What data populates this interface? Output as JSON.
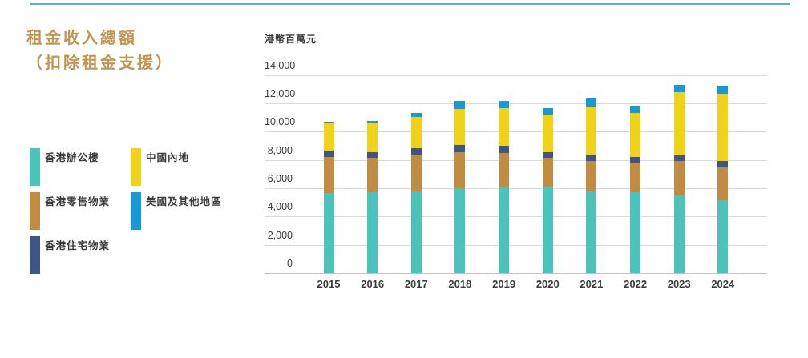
{
  "header": {
    "title_line1": "租金收入總額",
    "title_line2": "（扣除租金支援）",
    "title_color": "#C39450",
    "top_rule_color": "#64ACC1"
  },
  "chart_data": {
    "type": "bar",
    "stacked": true,
    "title": "租金收入總額（扣除租金支援）",
    "unit_label": "港幣百萬元",
    "xlabel": "",
    "ylabel": "港幣百萬元",
    "ylim": [
      0,
      14000
    ],
    "grid": true,
    "legend_position": "left",
    "categories": [
      "2015",
      "2016",
      "2017",
      "2018",
      "2019",
      "2020",
      "2021",
      "2022",
      "2023",
      "2024"
    ],
    "series": [
      {
        "name": "香港辦公樓",
        "color": "#4CC3BA",
        "values": [
          5675,
          5700,
          5750,
          5975,
          6125,
          6100,
          5800,
          5700,
          5500,
          5175
        ]
      },
      {
        "name": "香港零售物業",
        "color": "#C18B42",
        "values": [
          2525,
          2450,
          2625,
          2575,
          2375,
          2025,
          2150,
          2100,
          2400,
          2300
        ]
      },
      {
        "name": "香港住宅物業",
        "color": "#3E5588",
        "values": [
          450,
          425,
          450,
          500,
          500,
          450,
          450,
          425,
          425,
          425
        ]
      },
      {
        "name": "中國內地",
        "color": "#F0D216",
        "values": [
          1975,
          2050,
          2200,
          2550,
          2675,
          2625,
          3400,
          3100,
          4475,
          4775
        ]
      },
      {
        "name": "美國及其他地區",
        "color": "#1699D6",
        "values": [
          100,
          150,
          325,
          550,
          500,
          475,
          575,
          500,
          525,
          575
        ]
      }
    ],
    "totals": [
      10725,
      10775,
      11350,
      12150,
      12175,
      11675,
      12375,
      11825,
      13325,
      13250
    ],
    "yticks": [
      "0",
      "2,000",
      "4,000",
      "6,000",
      "8,000",
      "10,000",
      "12,000",
      "14,000"
    ],
    "grid_color": "#D9D9D9"
  }
}
